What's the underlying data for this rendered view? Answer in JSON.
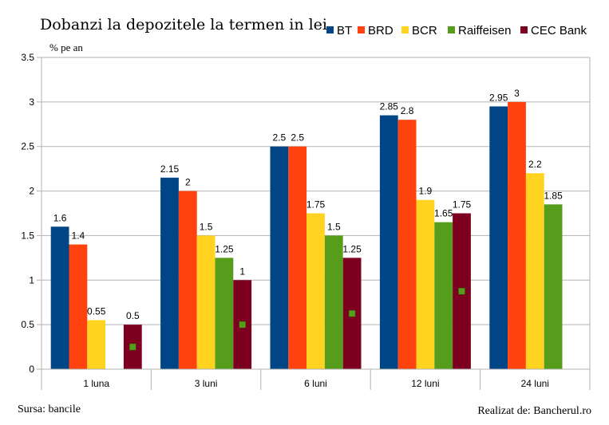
{
  "title": "Dobanzi la depozitele la termen in lei",
  "unit_label": "% pe an",
  "source": "Sursa: bancile",
  "credit": "Realizat de: Bancherul.ro",
  "chart_data": {
    "type": "bar",
    "categories": [
      "1 luna",
      "3 luni",
      "6 luni",
      "12 luni",
      "24 luni"
    ],
    "ylim": [
      0,
      3.5
    ],
    "yticks": [
      "0",
      "0.5",
      "1",
      "1.5",
      "2",
      "2.5",
      "3",
      "3.5"
    ],
    "grid": true,
    "legend_position": "top-right",
    "series": [
      {
        "name": "BT",
        "color": "#004586",
        "values": [
          1.6,
          2.15,
          2.5,
          2.85,
          2.95
        ],
        "labels": [
          "1.6",
          "2.15",
          "2.5",
          "2.85",
          "2.95"
        ]
      },
      {
        "name": "BRD",
        "color": "#ff420e",
        "values": [
          1.4,
          2,
          2.5,
          2.8,
          3
        ],
        "labels": [
          "1.4",
          "2",
          "2.5",
          "2.8",
          "3"
        ]
      },
      {
        "name": "BCR",
        "color": "#ffd320",
        "values": [
          0.55,
          1.5,
          1.75,
          1.9,
          2.2
        ],
        "labels": [
          "0.55",
          "1.5",
          "1.75",
          "1.9",
          "2.2"
        ]
      },
      {
        "name": "Raiffeisen",
        "color": "#579d1c",
        "values": [
          null,
          1.25,
          1.5,
          1.65,
          1.85
        ],
        "labels": [
          "",
          "1.25",
          "1.5",
          "1.65",
          "1.85"
        ]
      },
      {
        "name": "CEC Bank",
        "color": "#7e0021",
        "values": [
          0.5,
          1,
          1.25,
          1.75,
          null
        ],
        "labels": [
          "0.5",
          "1",
          "1.25",
          "1.75",
          ""
        ]
      }
    ],
    "markers": {
      "color": "#579d1c",
      "values": [
        0.25,
        0.5,
        0.625,
        0.875,
        null
      ]
    }
  }
}
